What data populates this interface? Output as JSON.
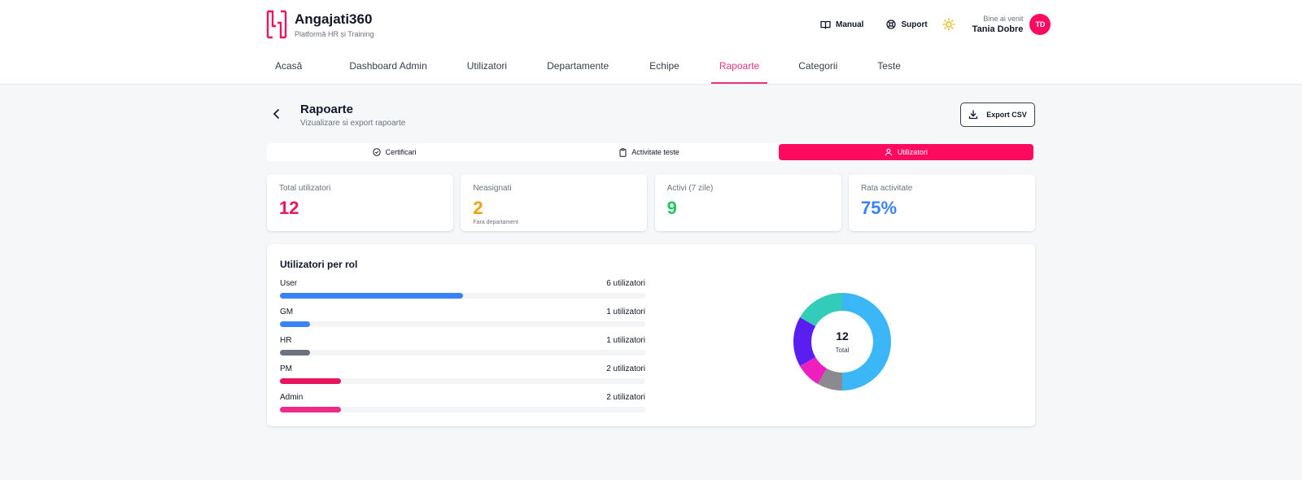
{
  "brand": {
    "name": "Angajati360",
    "subtitle": "Platformă HR și Training"
  },
  "header": {
    "manual_label": "Manual",
    "suport_label": "Suport",
    "welcome": "Bine ai venit",
    "user_name": "Tania Dobre",
    "avatar_initials": "TD"
  },
  "nav": {
    "items": [
      {
        "label": "Acasă",
        "active": false
      },
      {
        "label": "Dashboard Admin",
        "active": false
      },
      {
        "label": "Utilizatori",
        "active": false
      },
      {
        "label": "Departamente",
        "active": false
      },
      {
        "label": "Echipe",
        "active": false
      },
      {
        "label": "Rapoarte",
        "active": true
      },
      {
        "label": "Categorii",
        "active": false
      },
      {
        "label": "Teste",
        "active": false
      }
    ]
  },
  "page": {
    "title": "Rapoarte",
    "subtitle": "Vizualizare si export rapoarte",
    "export_label": "Export CSV"
  },
  "tabs": [
    {
      "label": "Certificari",
      "icon": "check-circle-icon",
      "active": false
    },
    {
      "label": "Activitate teste",
      "icon": "clipboard-icon",
      "active": false
    },
    {
      "label": "Utilizatori",
      "icon": "user-icon",
      "active": true
    }
  ],
  "stats": [
    {
      "label": "Total utilizatori",
      "value": "12",
      "note": "",
      "color": "#e8175d"
    },
    {
      "label": "Neasignati",
      "value": "2",
      "note": "Fara departament",
      "color": "#f59e0b"
    },
    {
      "label": "Activi (7 zile)",
      "value": "9",
      "note": "",
      "color": "#22c55e"
    },
    {
      "label": "Rata activitate",
      "value": "75%",
      "note": "",
      "color": "#3b82f6"
    }
  ],
  "roles_panel": {
    "title": "Utilizatori per rol",
    "total": 12,
    "roles": [
      {
        "name": "User",
        "count_label": "6 utilizatori",
        "count": 6,
        "color": "#3b82f6"
      },
      {
        "name": "GM",
        "count_label": "1 utilizatori",
        "count": 1,
        "color": "#3b82f6"
      },
      {
        "name": "HR",
        "count_label": "1 utilizatori",
        "count": 1,
        "color": "#6b7280"
      },
      {
        "name": "PM",
        "count_label": "2 utilizatori",
        "count": 2,
        "color": "#e8175d"
      },
      {
        "name": "Admin",
        "count_label": "2 utilizatori",
        "count": 2,
        "color": "#ec2c8a"
      }
    ]
  },
  "chart_data": {
    "type": "pie",
    "center_value": "12",
    "center_label": "Total",
    "slices": [
      {
        "value": 6,
        "color": "#3bb7f7"
      },
      {
        "value": 1,
        "color": "#8a8a8f"
      },
      {
        "value": 1,
        "color": "#ee1fbf"
      },
      {
        "value": 2,
        "color": "#5b1ef0"
      },
      {
        "value": 2,
        "color": "#33ccb8"
      }
    ]
  }
}
